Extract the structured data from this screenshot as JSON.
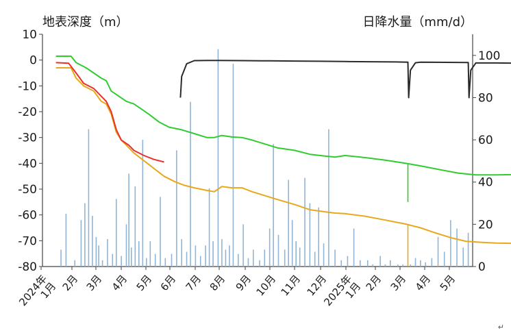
{
  "chart_data": {
    "type": "line",
    "left_axis_title": "地表深度（m）",
    "right_axis_title": "日降水量（mm/d）",
    "left_axis": {
      "ylim": [
        -80,
        10
      ],
      "ticks": [
        10,
        0,
        -10,
        -20,
        -30,
        -40,
        -50,
        -60,
        -70,
        -80
      ]
    },
    "right_axis": {
      "ylim": [
        0,
        110
      ],
      "ticks": [
        100,
        80,
        60,
        40,
        20,
        0
      ]
    },
    "x_range_months": [
      0,
      17
    ],
    "x_tick_labels": [
      "2024年\n1月",
      "2月",
      "3月",
      "4月",
      "5月",
      "6月",
      "7月",
      "8月",
      "9月",
      "10月",
      "11月",
      "12月",
      "2025年\n1月",
      "2月",
      "3月",
      "4月",
      "5月"
    ],
    "series": [
      {
        "color": "#2ecc2e",
        "axis": "left",
        "points": [
          [
            0.5,
            1.5
          ],
          [
            1.1,
            1.5
          ],
          [
            1.3,
            -1
          ],
          [
            1.7,
            -3
          ],
          [
            2.0,
            -5
          ],
          [
            2.3,
            -7
          ],
          [
            2.5,
            -8
          ],
          [
            2.7,
            -12
          ],
          [
            3.0,
            -14
          ],
          [
            3.3,
            -16
          ],
          [
            3.6,
            -17
          ],
          [
            3.9,
            -19
          ],
          [
            4.2,
            -21
          ],
          [
            4.6,
            -24
          ],
          [
            5.0,
            -26
          ],
          [
            5.5,
            -27
          ],
          [
            6.0,
            -28.5
          ],
          [
            6.5,
            -30
          ],
          [
            6.8,
            -30
          ],
          [
            7.1,
            -29.2
          ],
          [
            7.5,
            -29.8
          ],
          [
            7.9,
            -30
          ],
          [
            8.3,
            -31
          ],
          [
            8.8,
            -32.5
          ],
          [
            9.3,
            -34
          ],
          [
            10.0,
            -35
          ],
          [
            10.6,
            -36.5
          ],
          [
            11.2,
            -37.2
          ],
          [
            11.6,
            -37.6
          ],
          [
            12.0,
            -37
          ],
          [
            12.8,
            -37.8
          ],
          [
            13.6,
            -38.8
          ],
          [
            14.4,
            -40
          ],
          [
            15.0,
            -41
          ],
          [
            15.8,
            -42.5
          ],
          [
            16.5,
            -43.8
          ],
          [
            17.2,
            -44.5
          ],
          [
            18.0,
            -44.5
          ],
          [
            18.6,
            -44.4
          ],
          [
            19.0,
            -44.2
          ]
        ]
      },
      {
        "color": "#e8a81a",
        "axis": "left",
        "points": [
          [
            0.5,
            -3
          ],
          [
            1.1,
            -3
          ],
          [
            1.3,
            -7
          ],
          [
            1.6,
            -10
          ],
          [
            2.0,
            -12
          ],
          [
            2.3,
            -16
          ],
          [
            2.5,
            -17
          ],
          [
            2.7,
            -21
          ],
          [
            2.9,
            -28
          ],
          [
            3.1,
            -31
          ],
          [
            3.4,
            -34
          ],
          [
            3.6,
            -36
          ],
          [
            4.0,
            -39
          ],
          [
            4.4,
            -42
          ],
          [
            4.8,
            -45
          ],
          [
            5.2,
            -47
          ],
          [
            5.6,
            -48.5
          ],
          [
            6.0,
            -49.5
          ],
          [
            6.5,
            -50.5
          ],
          [
            6.8,
            -51
          ],
          [
            7.1,
            -49
          ],
          [
            7.5,
            -49.5
          ],
          [
            7.9,
            -49.5
          ],
          [
            8.3,
            -51
          ],
          [
            8.8,
            -52.5
          ],
          [
            9.3,
            -54
          ],
          [
            10.0,
            -56
          ],
          [
            10.6,
            -58
          ],
          [
            11.2,
            -58.8
          ],
          [
            11.6,
            -59.3
          ],
          [
            12.0,
            -59.5
          ],
          [
            12.8,
            -60.5
          ],
          [
            13.6,
            -62
          ],
          [
            14.4,
            -63.5
          ],
          [
            15.0,
            -65
          ],
          [
            15.6,
            -67
          ],
          [
            16.2,
            -68.8
          ],
          [
            16.8,
            -70.2
          ],
          [
            17.4,
            -70.6
          ],
          [
            18.0,
            -70.9
          ],
          [
            18.6,
            -71
          ],
          [
            19.0,
            -70.9
          ]
        ]
      },
      {
        "color": "#e8312a",
        "axis": "left",
        "points": [
          [
            0.5,
            -1
          ],
          [
            1.0,
            -1.2
          ],
          [
            1.3,
            -5
          ],
          [
            1.6,
            -9
          ],
          [
            2.0,
            -11
          ],
          [
            2.3,
            -14
          ],
          [
            2.5,
            -16
          ],
          [
            2.7,
            -20
          ],
          [
            2.9,
            -27
          ],
          [
            3.1,
            -31
          ],
          [
            3.4,
            -33
          ],
          [
            3.6,
            -35
          ],
          [
            4.0,
            -37
          ],
          [
            4.4,
            -38.5
          ],
          [
            4.8,
            -39.5
          ]
        ]
      },
      {
        "color": "#2a2a2a",
        "axis": "right",
        "points": [
          [
            5.45,
            80
          ],
          [
            5.5,
            90
          ],
          [
            5.7,
            96
          ],
          [
            6.0,
            97.5
          ],
          [
            6.5,
            97.6
          ],
          [
            7.0,
            97.6
          ],
          [
            8.0,
            97.5
          ],
          [
            9.0,
            97.4
          ],
          [
            10.0,
            97.3
          ],
          [
            11.0,
            97.2
          ],
          [
            12.0,
            97.1
          ],
          [
            13.0,
            97.0
          ],
          [
            14.0,
            96.9
          ],
          [
            14.5,
            96.8
          ],
          [
            14.53,
            80
          ],
          [
            14.6,
            93
          ],
          [
            14.8,
            96.5
          ],
          [
            15.0,
            96.8
          ],
          [
            16.0,
            96.7
          ],
          [
            16.9,
            96.6
          ],
          [
            16.93,
            80
          ],
          [
            17.0,
            93
          ],
          [
            17.2,
            96.4
          ],
          [
            18.0,
            96.4
          ],
          [
            19.0,
            96.3
          ]
        ]
      }
    ],
    "rain_bars": [
      [
        0.7,
        8
      ],
      [
        0.9,
        25
      ],
      [
        1.25,
        3
      ],
      [
        1.5,
        22
      ],
      [
        1.65,
        30
      ],
      [
        1.8,
        65
      ],
      [
        1.95,
        24
      ],
      [
        2.1,
        14
      ],
      [
        2.2,
        10
      ],
      [
        2.35,
        3
      ],
      [
        2.55,
        13
      ],
      [
        2.75,
        6
      ],
      [
        2.9,
        32
      ],
      [
        3.1,
        5
      ],
      [
        3.3,
        20
      ],
      [
        3.4,
        44
      ],
      [
        3.5,
        9
      ],
      [
        3.65,
        38
      ],
      [
        3.8,
        12
      ],
      [
        3.95,
        60
      ],
      [
        4.1,
        4
      ],
      [
        4.25,
        12
      ],
      [
        4.45,
        6
      ],
      [
        4.65,
        33
      ],
      [
        4.85,
        4
      ],
      [
        5.1,
        6
      ],
      [
        5.3,
        55
      ],
      [
        5.5,
        13
      ],
      [
        5.7,
        7
      ],
      [
        5.85,
        78
      ],
      [
        6.05,
        10
      ],
      [
        6.25,
        5
      ],
      [
        6.45,
        10
      ],
      [
        6.6,
        37
      ],
      [
        6.75,
        12
      ],
      [
        6.95,
        103
      ],
      [
        7.1,
        13
      ],
      [
        7.25,
        8
      ],
      [
        7.4,
        10
      ],
      [
        7.55,
        96
      ],
      [
        7.75,
        6
      ],
      [
        7.95,
        20
      ],
      [
        8.15,
        4
      ],
      [
        8.35,
        8
      ],
      [
        8.6,
        3
      ],
      [
        8.8,
        8
      ],
      [
        9.0,
        18
      ],
      [
        9.15,
        58
      ],
      [
        9.35,
        15
      ],
      [
        9.6,
        8
      ],
      [
        9.75,
        41
      ],
      [
        9.9,
        22
      ],
      [
        10.05,
        12
      ],
      [
        10.2,
        9
      ],
      [
        10.4,
        42
      ],
      [
        10.6,
        30
      ],
      [
        10.8,
        7
      ],
      [
        10.95,
        28
      ],
      [
        11.15,
        11
      ],
      [
        11.35,
        65
      ],
      [
        11.6,
        8
      ],
      [
        11.85,
        3
      ],
      [
        12.1,
        5
      ],
      [
        12.35,
        18
      ],
      [
        12.6,
        3
      ],
      [
        12.9,
        3
      ],
      [
        13.1,
        1
      ],
      [
        13.4,
        5
      ],
      [
        13.6,
        1
      ],
      [
        13.8,
        3
      ],
      [
        14.1,
        1
      ],
      [
        14.3,
        1
      ],
      [
        14.6,
        1
      ],
      [
        14.8,
        4
      ],
      [
        15.0,
        3
      ],
      [
        15.2,
        2
      ],
      [
        15.45,
        4
      ],
      [
        15.7,
        14
      ],
      [
        15.95,
        7
      ],
      [
        16.2,
        22
      ],
      [
        16.45,
        18
      ],
      [
        16.7,
        9
      ],
      [
        16.9,
        16
      ],
      [
        17.15,
        10
      ],
      [
        17.4,
        26
      ],
      [
        17.6,
        6
      ],
      [
        17.85,
        22
      ],
      [
        18.05,
        20
      ],
      [
        18.3,
        12
      ],
      [
        18.55,
        24
      ],
      [
        18.8,
        8
      ]
    ],
    "rain_bar_color": "#8fb4d6"
  },
  "footer": {
    "mark": "↵"
  }
}
